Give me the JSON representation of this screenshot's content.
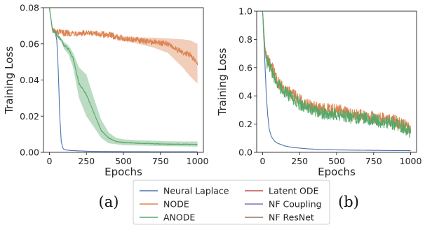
{
  "colors": {
    "neural_laplace": "#4c72b0",
    "node": "#dd8452",
    "anode": "#55a868",
    "latent_ode": "#c44e52",
    "nf_coupling": "#8172b3",
    "nf_resnet": "#937860"
  },
  "chart_data": [
    {
      "type": "line",
      "panel_label": "(a)",
      "xlabel": "Epochs",
      "ylabel": "Training Loss",
      "xlim": [
        -40,
        1040
      ],
      "ylim": [
        0,
        0.08
      ],
      "xticks": [
        0,
        250,
        500,
        750,
        1000
      ],
      "xtick_labels": [
        "0",
        "250",
        "500",
        "750",
        "1000"
      ],
      "yticks": [
        0,
        0.02,
        0.04,
        0.06,
        0.08
      ],
      "ytick_labels": [
        "0.00",
        "0.02",
        "0.04",
        "0.06",
        "0.08"
      ],
      "grid": false,
      "series": [
        {
          "name": "Neural Laplace",
          "color_key": "neural_laplace",
          "x": [
            0,
            20,
            40,
            50,
            60,
            70,
            80,
            90,
            100,
            120,
            150,
            200,
            300,
            500,
            750,
            1000
          ],
          "y": [
            0.08,
            0.068,
            0.066,
            0.062,
            0.045,
            0.02,
            0.006,
            0.0025,
            0.0015,
            0.0012,
            0.001,
            0.0008,
            0.0005,
            0.0004,
            0.0003,
            0.0003
          ]
        },
        {
          "name": "NODE",
          "color_key": "node",
          "x": [
            0,
            20,
            40,
            100,
            200,
            300,
            400,
            500,
            600,
            700,
            800,
            900,
            950,
            1000
          ],
          "y": [
            0.08,
            0.068,
            0.0665,
            0.066,
            0.066,
            0.0655,
            0.065,
            0.063,
            0.062,
            0.061,
            0.06,
            0.055,
            0.054,
            0.049
          ],
          "band_upper": [
            0.08,
            0.069,
            0.067,
            0.0665,
            0.0665,
            0.066,
            0.0656,
            0.064,
            0.0635,
            0.0635,
            0.063,
            0.0625,
            0.062,
            0.06
          ],
          "band_lower": [
            0.08,
            0.067,
            0.066,
            0.0655,
            0.0655,
            0.065,
            0.064,
            0.062,
            0.06,
            0.058,
            0.055,
            0.047,
            0.042,
            0.038
          ]
        },
        {
          "name": "ANODE",
          "color_key": "anode",
          "x": [
            0,
            20,
            40,
            60,
            80,
            100,
            130,
            160,
            200,
            250,
            300,
            350,
            400,
            450,
            500,
            600,
            700,
            800,
            900,
            1000
          ],
          "y": [
            0.08,
            0.068,
            0.066,
            0.064,
            0.062,
            0.059,
            0.057,
            0.052,
            0.038,
            0.032,
            0.022,
            0.012,
            0.008,
            0.006,
            0.0055,
            0.005,
            0.0048,
            0.0045,
            0.0045,
            0.0043
          ],
          "band_upper": [
            0.08,
            0.069,
            0.067,
            0.065,
            0.063,
            0.061,
            0.059,
            0.055,
            0.047,
            0.043,
            0.03,
            0.018,
            0.011,
            0.008,
            0.0072,
            0.0067,
            0.0064,
            0.0061,
            0.006,
            0.006
          ],
          "band_lower": [
            0.08,
            0.067,
            0.065,
            0.063,
            0.061,
            0.057,
            0.054,
            0.047,
            0.03,
            0.02,
            0.014,
            0.008,
            0.005,
            0.0045,
            0.004,
            0.0038,
            0.0036,
            0.0034,
            0.0033,
            0.0032
          ]
        }
      ]
    },
    {
      "type": "line",
      "panel_label": "(b)",
      "xlabel": "Epochs",
      "ylabel": "Training Loss",
      "xlim": [
        -40,
        1040
      ],
      "ylim": [
        0,
        1.0
      ],
      "xticks": [
        0,
        250,
        500,
        750,
        1000
      ],
      "xtick_labels": [
        "0",
        "250",
        "500",
        "750",
        "1000"
      ],
      "yticks": [
        0,
        0.2,
        0.4,
        0.6,
        0.8,
        1.0
      ],
      "ytick_labels": [
        "0.0",
        "0.2",
        "0.4",
        "0.6",
        "0.8",
        "1.0"
      ],
      "grid": false,
      "series": [
        {
          "name": "Neural Laplace",
          "color_key": "neural_laplace",
          "x": [
            0,
            15,
            25,
            35,
            45,
            60,
            80,
            100,
            150,
            200,
            300,
            400,
            500,
            750,
            1000
          ],
          "y": [
            1.0,
            0.65,
            0.4,
            0.26,
            0.16,
            0.11,
            0.08,
            0.065,
            0.045,
            0.035,
            0.025,
            0.02,
            0.017,
            0.014,
            0.012
          ]
        },
        {
          "name": "NODE",
          "color_key": "node",
          "x": [
            0,
            15,
            30,
            60,
            100,
            150,
            200,
            250,
            300,
            400,
            500,
            600,
            700,
            800,
            900,
            950,
            1000
          ],
          "y": [
            1.0,
            0.75,
            0.66,
            0.62,
            0.5,
            0.44,
            0.42,
            0.37,
            0.34,
            0.3,
            0.3,
            0.27,
            0.26,
            0.24,
            0.22,
            0.2,
            0.15
          ]
        },
        {
          "name": "ANODE",
          "color_key": "anode",
          "x": [
            0,
            15,
            30,
            60,
            100,
            150,
            200,
            250,
            300,
            400,
            500,
            600,
            700,
            800,
            900,
            950,
            1000
          ],
          "y": [
            1.0,
            0.72,
            0.64,
            0.58,
            0.48,
            0.43,
            0.39,
            0.34,
            0.32,
            0.28,
            0.27,
            0.25,
            0.24,
            0.22,
            0.2,
            0.18,
            0.14
          ]
        }
      ]
    }
  ],
  "legend": {
    "placement": "bottom-center",
    "items": [
      {
        "label": "Neural Laplace",
        "color_key": "neural_laplace"
      },
      {
        "label": "NODE",
        "color_key": "node"
      },
      {
        "label": "ANODE",
        "color_key": "anode"
      },
      {
        "label": "Latent ODE",
        "color_key": "latent_ode"
      },
      {
        "label": "NF Coupling",
        "color_key": "nf_coupling"
      },
      {
        "label": "NF ResNet",
        "color_key": "nf_resnet"
      }
    ]
  }
}
